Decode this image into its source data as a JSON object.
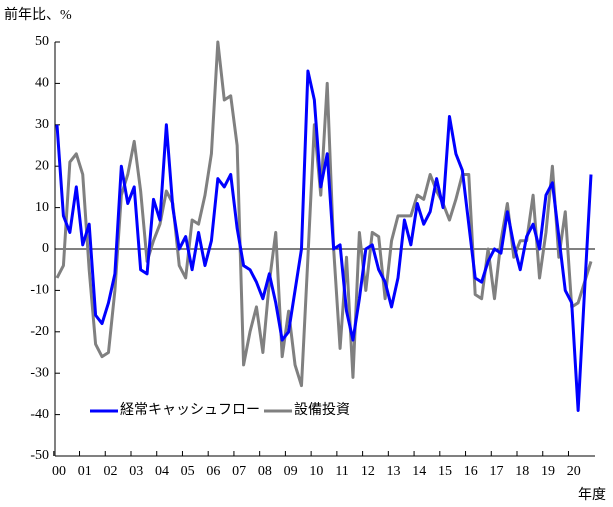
{
  "chart_data": {
    "type": "line",
    "y_label": "前年比、%",
    "x_label": "年度",
    "categories": [
      "00",
      null,
      null,
      null,
      "01",
      null,
      null,
      null,
      "02",
      null,
      null,
      null,
      "03",
      null,
      null,
      null,
      "04",
      null,
      null,
      null,
      "05",
      null,
      null,
      null,
      "06",
      null,
      null,
      null,
      "07",
      null,
      null,
      null,
      "08",
      null,
      null,
      null,
      "09",
      null,
      null,
      null,
      "10",
      null,
      null,
      null,
      "11",
      null,
      null,
      null,
      "12",
      null,
      null,
      null,
      "13",
      null,
      null,
      null,
      "14",
      null,
      null,
      null,
      "15",
      null,
      null,
      null,
      "16",
      null,
      null,
      null,
      "17",
      null,
      null,
      null,
      "18",
      null,
      null,
      null,
      "19",
      null,
      null,
      null,
      "20",
      null,
      null,
      null
    ],
    "series": [
      {
        "name": "経常キャッシュフロー",
        "color": "#0000ff",
        "values": [
          30,
          8,
          4,
          15,
          1,
          6,
          -16,
          -18,
          -13,
          -6,
          20,
          11,
          15,
          -5,
          -6,
          12,
          7,
          30,
          10,
          0,
          3,
          -5,
          4,
          -4,
          2,
          17,
          15,
          18,
          5,
          -4,
          -5,
          -8,
          -12,
          -6,
          -13,
          -22,
          -20,
          -10,
          0,
          43,
          36,
          15,
          23,
          0,
          1,
          -15,
          -22,
          -12,
          0,
          1,
          -5,
          -8,
          -14,
          -7,
          7,
          1,
          11,
          6,
          9,
          17,
          10,
          32,
          23,
          19,
          6,
          -7,
          -8,
          -3,
          0,
          -1,
          9,
          1,
          -5,
          3,
          6,
          0,
          13,
          16,
          3,
          -10,
          -13,
          -39,
          -10,
          18
        ]
      },
      {
        "name": "設備投資",
        "color": "#808080",
        "values": [
          -7,
          -4,
          21,
          23,
          18,
          -5,
          -23,
          -26,
          -25,
          -10,
          13,
          18,
          26,
          14,
          -3,
          2,
          6,
          14,
          11,
          -4,
          -7,
          7,
          6,
          13,
          23,
          50,
          36,
          37,
          25,
          -28,
          -20,
          -14,
          -25,
          -8,
          4,
          -26,
          -15,
          -28,
          -33,
          -2,
          30,
          13,
          40,
          0,
          -24,
          -2,
          -31,
          4,
          -10,
          4,
          3,
          -12,
          2,
          8,
          8,
          8,
          13,
          12,
          18,
          14,
          11,
          7,
          12,
          18,
          18,
          -11,
          -12,
          0,
          -12,
          2,
          11,
          -2,
          2,
          2,
          13,
          -7,
          4,
          20,
          -2,
          9,
          -14,
          -13,
          -8,
          -3
        ]
      }
    ],
    "ylim": [
      -50,
      50
    ],
    "yticks": [
      -50,
      -40,
      -30,
      -20,
      -10,
      0,
      10,
      20,
      30,
      40,
      50
    ],
    "zero_line": true,
    "legend": "lower left"
  }
}
